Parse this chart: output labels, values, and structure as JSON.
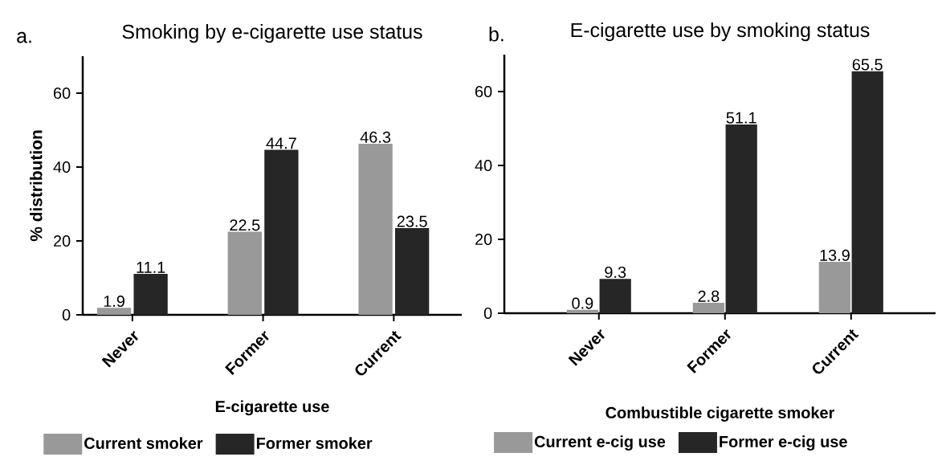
{
  "chart_data": [
    {
      "type": "bar",
      "title": "Smoking by e-cigarette use status",
      "annotations": [
        "a."
      ],
      "xlabel": "E-cigarette use",
      "ylabel": "% distribution",
      "categories": [
        "Never",
        "Former",
        "Current"
      ],
      "series": [
        {
          "name": "Current smoker",
          "color": "#999999",
          "values": [
            1.9,
            22.5,
            46.3
          ]
        },
        {
          "name": "Former smoker",
          "color": "#262626",
          "values": [
            11.1,
            44.7,
            23.5
          ]
        }
      ],
      "ylim": [
        0,
        70
      ],
      "yticks": [
        0,
        20,
        40,
        60
      ],
      "data_labels": true,
      "legend": "bottom"
    },
    {
      "type": "bar",
      "title": "E-cigarette use by smoking status",
      "annotations": [
        "b."
      ],
      "xlabel": "Combustible cigarette smoker",
      "categories": [
        "Never",
        "Former",
        "Current"
      ],
      "series": [
        {
          "name": "Current e-cig use",
          "color": "#999999",
          "values": [
            0.9,
            2.8,
            13.9
          ]
        },
        {
          "name": "Former e-cig use",
          "color": "#262626",
          "values": [
            9.3,
            51.1,
            65.5
          ]
        }
      ],
      "ylim": [
        0,
        70
      ],
      "yticks": [
        0,
        20,
        40,
        60
      ],
      "data_labels": true,
      "legend": "bottom"
    }
  ]
}
